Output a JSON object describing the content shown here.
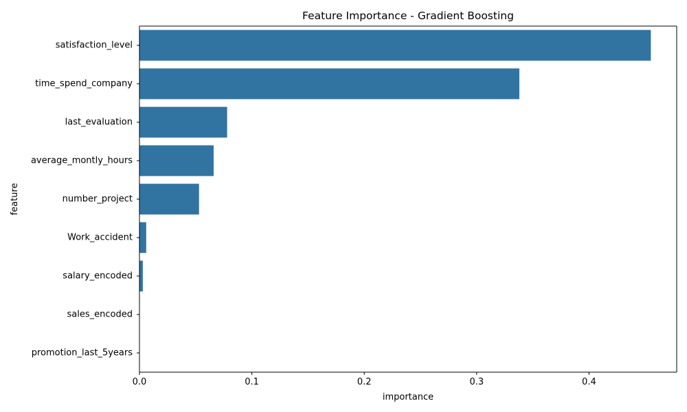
{
  "chart_data": {
    "type": "bar",
    "orientation": "horizontal",
    "title": "Feature Importance - Gradient Boosting",
    "xlabel": "importance",
    "ylabel": "feature",
    "categories": [
      "satisfaction_level",
      "time_spend_company",
      "last_evaluation",
      "average_montly_hours",
      "number_project",
      "Work_accident",
      "salary_encoded",
      "sales_encoded",
      "promotion_last_5years"
    ],
    "values": [
      0.455,
      0.338,
      0.078,
      0.066,
      0.053,
      0.006,
      0.003,
      0.0,
      0.0
    ],
    "xlim": [
      0,
      0.478
    ],
    "xticks": [
      0,
      0.1,
      0.2,
      0.3,
      0.4
    ],
    "xtick_labels": [
      "0.0",
      "0.1",
      "0.2",
      "0.3",
      "0.4"
    ],
    "bar_color": "#3274a1",
    "grid": false,
    "legend": "none"
  }
}
